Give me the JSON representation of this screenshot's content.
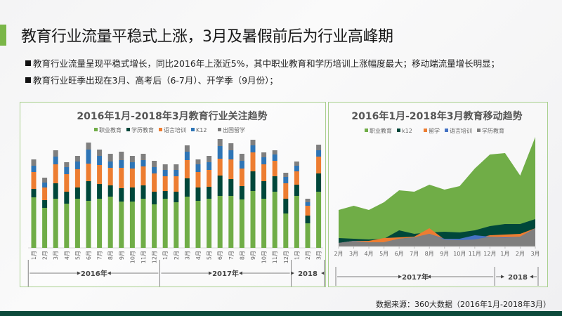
{
  "slide": {
    "title": "教育行业流量平稳式上涨，3月及暑假前后为行业高峰期",
    "bullets": [
      "教育行业流量呈现平稳式增长，同比2016年上涨近5%，其中职业教育和学历培训上涨幅度最大；移动端流量增长明显；",
      "教育行业旺季出现在3月、高考后（6-7月）、开学季（9月份）；"
    ],
    "source": "数据来源：360大数据（2016年1月-2018年3月）"
  },
  "colors": {
    "accent": "#7ab648",
    "green": "#70ad47",
    "dark": "#00473a",
    "orange": "#ed7d31",
    "blue": "#2e75b6",
    "gray": "#7f7f7f",
    "footer": "#0d4a3b"
  },
  "chart_data": [
    {
      "type": "bar",
      "stacked": true,
      "title": "2016年1月-2018年3月教育行业关注趋势",
      "legend_position": "top",
      "grid": false,
      "categories": [
        "1月",
        "2月",
        "3月",
        "4月",
        "5月",
        "6月",
        "7月",
        "8月",
        "9月",
        "10月",
        "11月",
        "12月",
        "1月",
        "2月",
        "3月",
        "4月",
        "5月",
        "6月",
        "7月",
        "8月",
        "9月",
        "10月",
        "11月",
        "12月",
        "1月",
        "2月",
        "3月"
      ],
      "year_groups": [
        {
          "label": "2016年",
          "count": 12
        },
        {
          "label": "2017年",
          "count": 12
        },
        {
          "label": "2018",
          "count": 3
        }
      ],
      "series": [
        {
          "name": "职业教育",
          "color": "#70ad47",
          "values": [
            72,
            57,
            70,
            63,
            70,
            67,
            70,
            73,
            66,
            66,
            70,
            62,
            70,
            65,
            73,
            67,
            70,
            74,
            74,
            69,
            81,
            70,
            80,
            49,
            74,
            35,
            80
          ]
        },
        {
          "name": "学历教育",
          "color": "#00473a",
          "values": [
            12,
            11,
            22,
            17,
            16,
            28,
            21,
            16,
            19,
            20,
            19,
            18,
            11,
            15,
            26,
            19,
            17,
            29,
            24,
            19,
            28,
            25,
            22,
            21,
            16,
            11,
            26
          ]
        },
        {
          "name": "语言培训",
          "color": "#ed7d31",
          "values": [
            24,
            18,
            27,
            25,
            26,
            25,
            27,
            25,
            29,
            27,
            27,
            26,
            21,
            22,
            26,
            22,
            24,
            24,
            28,
            25,
            27,
            24,
            22,
            22,
            19,
            14,
            24
          ]
        },
        {
          "name": "K12",
          "color": "#2e75b6",
          "values": [
            9,
            7,
            11,
            10,
            11,
            20,
            13,
            9,
            11,
            9,
            9,
            9,
            9,
            9,
            12,
            11,
            11,
            18,
            13,
            11,
            10,
            10,
            9,
            9,
            8,
            5,
            9
          ]
        },
        {
          "name": "出国留学",
          "color": "#7f7f7f",
          "values": [
            9,
            7,
            9,
            7,
            8,
            10,
            9,
            11,
            12,
            9,
            9,
            9,
            8,
            8,
            9,
            7,
            9,
            10,
            10,
            10,
            8,
            7,
            6,
            6,
            6,
            5,
            8
          ]
        }
      ]
    },
    {
      "type": "area",
      "stacked": false,
      "title": "2016年1月-2018年3月教育移动趋势",
      "legend_position": "top",
      "grid": false,
      "categories": [
        "2月",
        "3月",
        "4月",
        "5月",
        "6月",
        "7月",
        "8月",
        "9月",
        "10月",
        "11月",
        "12月",
        "1月",
        "2月",
        "3月"
      ],
      "year_groups": [
        {
          "label": "2017年",
          "count": 11
        },
        {
          "label": "2018",
          "count": 3
        }
      ],
      "series": [
        {
          "name": "职业教育",
          "color": "#70ad47",
          "values": [
            52,
            58,
            52,
            63,
            80,
            78,
            88,
            81,
            86,
            111,
            131,
            133,
            101,
            156
          ]
        },
        {
          "name": "k12",
          "color": "#00473a",
          "values": [
            12,
            11,
            10,
            11,
            23,
            18,
            20,
            21,
            20,
            23,
            29,
            32,
            32,
            39
          ]
        },
        {
          "name": "留学",
          "color": "#ed7d31",
          "values": [
            5,
            8,
            8,
            12,
            13,
            14,
            26,
            10,
            11,
            11,
            16,
            17,
            18,
            26
          ]
        },
        {
          "name": "语言培训",
          "color": "#4472c4",
          "values": [
            5,
            8,
            6,
            6,
            11,
            13,
            18,
            11,
            11,
            16,
            14,
            13,
            14,
            26
          ]
        },
        {
          "name": "学历教育",
          "color": "#7f7f7f",
          "values": [
            5,
            8,
            6,
            6,
            11,
            13,
            18,
            10,
            9,
            10,
            14,
            12,
            14,
            26
          ]
        }
      ]
    }
  ]
}
